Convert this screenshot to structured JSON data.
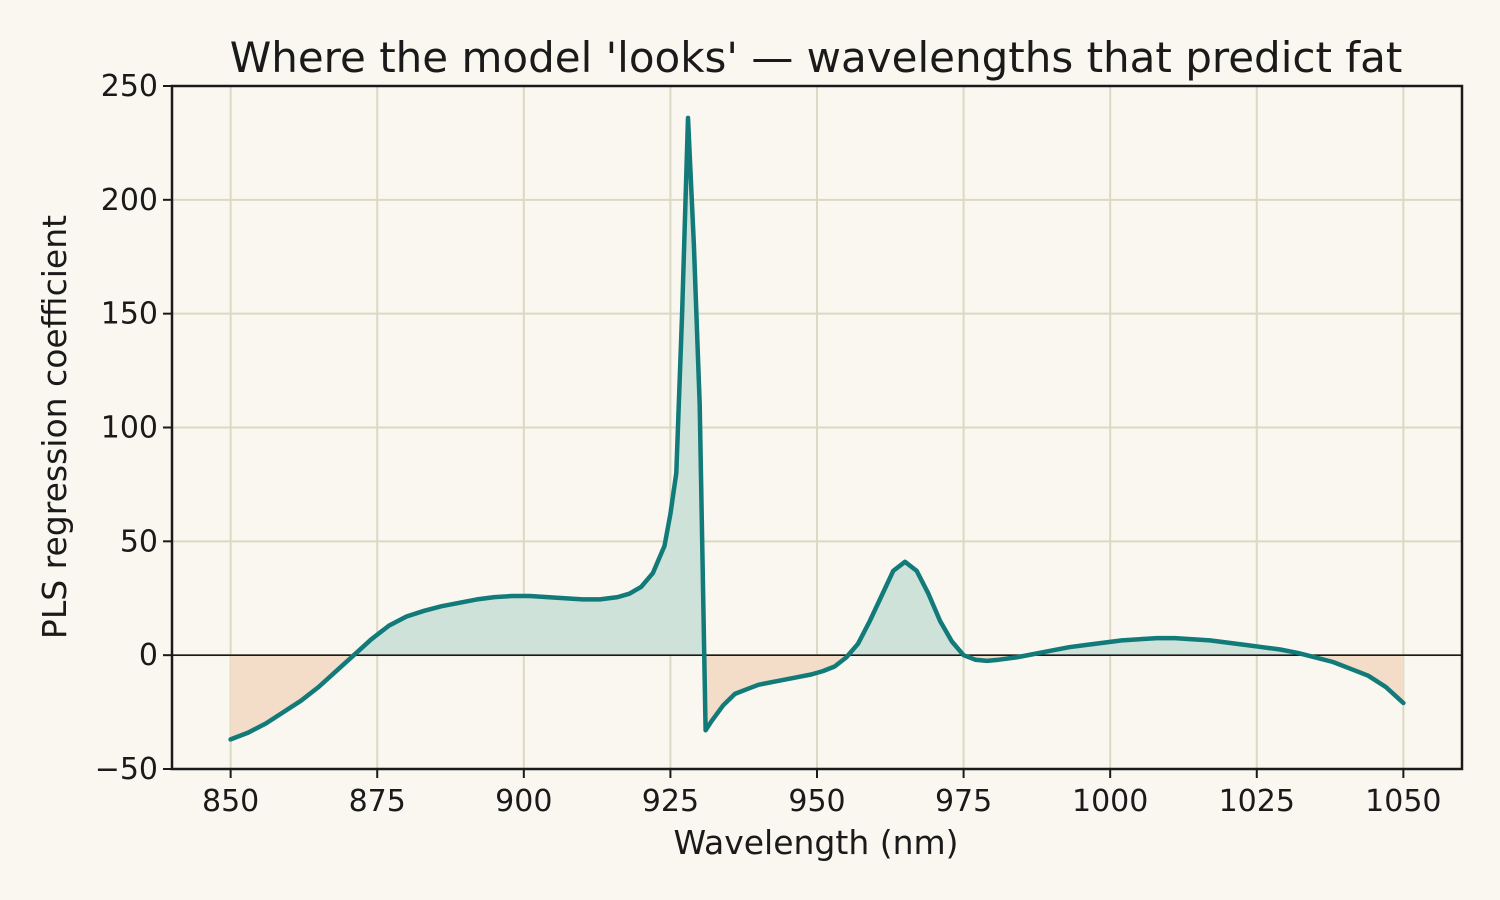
{
  "chart_data": {
    "type": "line",
    "title": "Where the model 'looks' — wavelengths that predict fat",
    "xlabel": "Wavelength (nm)",
    "ylabel": "PLS regression coefficient",
    "xlim": [
      840,
      1060
    ],
    "ylim": [
      -50,
      250
    ],
    "xticks": [
      850,
      875,
      900,
      925,
      950,
      975,
      1000,
      1025,
      1050
    ],
    "yticks": [
      -50,
      0,
      50,
      100,
      150,
      200,
      250
    ],
    "xtick_labels": [
      "850",
      "875",
      "900",
      "925",
      "950",
      "975",
      "1000",
      "1025",
      "1050"
    ],
    "ytick_labels": [
      "−50",
      "0",
      "50",
      "100",
      "150",
      "200",
      "250"
    ],
    "grid": true,
    "reference_line_y": 0,
    "colors": {
      "line": "#127a78",
      "positive_fill": "#cfe2da",
      "negative_fill": "#f3ddc8",
      "grid": "#dcd9c2",
      "background": "#f9f7f0",
      "frame": "#1a1a1a"
    },
    "series": [
      {
        "x": [
          850,
          853,
          856,
          859,
          862,
          865,
          868,
          871,
          874,
          877,
          880,
          883,
          886,
          889,
          892,
          895,
          898,
          901,
          904,
          907,
          910,
          913,
          916,
          918,
          920,
          922,
          924,
          925,
          926,
          927,
          928,
          929,
          930,
          931,
          932,
          934,
          936,
          938,
          940,
          943,
          946,
          949,
          951,
          953,
          955,
          957,
          959,
          961,
          963,
          965,
          967,
          969,
          971,
          973,
          975,
          977,
          979,
          981,
          984,
          987,
          990,
          993,
          996,
          999,
          1002,
          1005,
          1008,
          1011,
          1014,
          1017,
          1020,
          1023,
          1026,
          1029,
          1032,
          1035,
          1038,
          1041,
          1044,
          1047,
          1050
        ],
        "values": [
          -37,
          -34,
          -30,
          -25,
          -20,
          -14,
          -7,
          0,
          7,
          13,
          17,
          19.5,
          21.5,
          23,
          24.5,
          25.5,
          26,
          26,
          25.5,
          25,
          24.5,
          24.5,
          25.5,
          27,
          30,
          36,
          48,
          62,
          80,
          150,
          236,
          180,
          110,
          -33,
          -29,
          -22,
          -17,
          -15,
          -13,
          -11.5,
          -10,
          -8.5,
          -7,
          -5,
          -1,
          5,
          15,
          26,
          37,
          41,
          37,
          27,
          15,
          6,
          0,
          -2,
          -2.5,
          -2,
          -1,
          0.5,
          2,
          3.5,
          4.5,
          5.5,
          6.5,
          7,
          7.5,
          7.5,
          7,
          6.5,
          5.5,
          4.5,
          3.5,
          2.5,
          1,
          -1,
          -3,
          -6,
          -9,
          -14,
          -21
        ]
      }
    ]
  }
}
